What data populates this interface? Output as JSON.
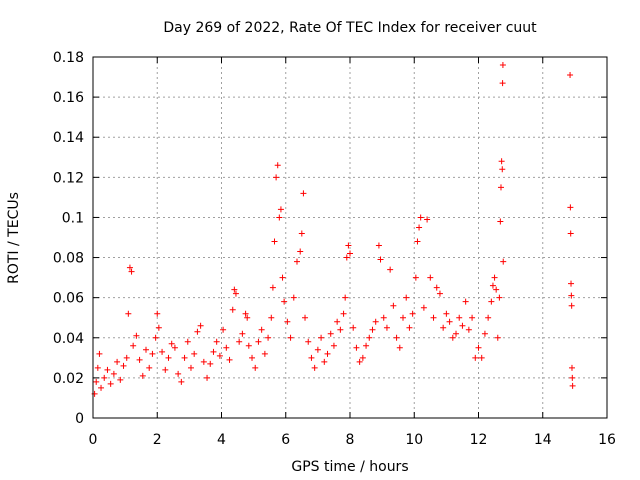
{
  "chart_data": {
    "type": "scatter",
    "title": "Day 269 of 2022, Rate Of TEC Index for receiver cuut",
    "xlabel": "GPS time / hours",
    "ylabel": "ROTI / TECUs",
    "xlim": [
      0,
      16
    ],
    "ylim": [
      0,
      0.18
    ],
    "xticks": [
      "0",
      "2",
      "4",
      "6",
      "8",
      "10",
      "12",
      "14",
      "16"
    ],
    "yticks": [
      "0",
      "0.02",
      "0.04",
      "0.06",
      "0.08",
      "0.1",
      "0.12",
      "0.14",
      "0.16",
      "0.18"
    ],
    "grid": true,
    "marker": "+",
    "series": [
      {
        "color": "#ff0000",
        "points": [
          [
            0.05,
            0.012
          ],
          [
            0.1,
            0.018
          ],
          [
            0.15,
            0.025
          ],
          [
            0.2,
            0.032
          ],
          [
            0.25,
            0.015
          ],
          [
            0.35,
            0.02
          ],
          [
            0.45,
            0.024
          ],
          [
            0.55,
            0.017
          ],
          [
            0.65,
            0.022
          ],
          [
            0.75,
            0.028
          ],
          [
            0.85,
            0.019
          ],
          [
            0.95,
            0.026
          ],
          [
            1.05,
            0.03
          ],
          [
            1.1,
            0.052
          ],
          [
            1.15,
            0.075
          ],
          [
            1.2,
            0.073
          ],
          [
            1.25,
            0.036
          ],
          [
            1.35,
            0.041
          ],
          [
            1.45,
            0.029
          ],
          [
            1.55,
            0.021
          ],
          [
            1.65,
            0.034
          ],
          [
            1.75,
            0.025
          ],
          [
            1.85,
            0.032
          ],
          [
            1.95,
            0.04
          ],
          [
            2.0,
            0.052
          ],
          [
            2.05,
            0.045
          ],
          [
            2.15,
            0.033
          ],
          [
            2.25,
            0.024
          ],
          [
            2.35,
            0.03
          ],
          [
            2.45,
            0.037
          ],
          [
            2.55,
            0.035
          ],
          [
            2.65,
            0.022
          ],
          [
            2.75,
            0.018
          ],
          [
            2.85,
            0.03
          ],
          [
            2.95,
            0.038
          ],
          [
            3.05,
            0.025
          ],
          [
            3.15,
            0.032
          ],
          [
            3.25,
            0.043
          ],
          [
            3.35,
            0.046
          ],
          [
            3.45,
            0.028
          ],
          [
            3.55,
            0.02
          ],
          [
            3.65,
            0.027
          ],
          [
            3.75,
            0.033
          ],
          [
            3.85,
            0.038
          ],
          [
            3.95,
            0.031
          ],
          [
            4.05,
            0.044
          ],
          [
            4.15,
            0.035
          ],
          [
            4.25,
            0.029
          ],
          [
            4.35,
            0.054
          ],
          [
            4.4,
            0.064
          ],
          [
            4.45,
            0.062
          ],
          [
            4.55,
            0.038
          ],
          [
            4.65,
            0.042
          ],
          [
            4.75,
            0.052
          ],
          [
            4.8,
            0.05
          ],
          [
            4.85,
            0.036
          ],
          [
            4.95,
            0.03
          ],
          [
            5.05,
            0.025
          ],
          [
            5.15,
            0.038
          ],
          [
            5.25,
            0.044
          ],
          [
            5.35,
            0.032
          ],
          [
            5.45,
            0.04
          ],
          [
            5.55,
            0.05
          ],
          [
            5.6,
            0.065
          ],
          [
            5.65,
            0.088
          ],
          [
            5.7,
            0.12
          ],
          [
            5.75,
            0.126
          ],
          [
            5.8,
            0.1
          ],
          [
            5.85,
            0.104
          ],
          [
            5.9,
            0.07
          ],
          [
            5.95,
            0.058
          ],
          [
            6.05,
            0.048
          ],
          [
            6.15,
            0.04
          ],
          [
            6.25,
            0.06
          ],
          [
            6.35,
            0.078
          ],
          [
            6.45,
            0.083
          ],
          [
            6.5,
            0.092
          ],
          [
            6.55,
            0.112
          ],
          [
            6.6,
            0.05
          ],
          [
            6.7,
            0.038
          ],
          [
            6.8,
            0.03
          ],
          [
            6.9,
            0.025
          ],
          [
            7.0,
            0.034
          ],
          [
            7.1,
            0.04
          ],
          [
            7.2,
            0.028
          ],
          [
            7.3,
            0.032
          ],
          [
            7.4,
            0.042
          ],
          [
            7.5,
            0.036
          ],
          [
            7.6,
            0.048
          ],
          [
            7.7,
            0.044
          ],
          [
            7.8,
            0.052
          ],
          [
            7.85,
            0.06
          ],
          [
            7.9,
            0.08
          ],
          [
            7.95,
            0.086
          ],
          [
            8.0,
            0.082
          ],
          [
            8.1,
            0.045
          ],
          [
            8.2,
            0.035
          ],
          [
            8.3,
            0.028
          ],
          [
            8.4,
            0.03
          ],
          [
            8.5,
            0.036
          ],
          [
            8.6,
            0.04
          ],
          [
            8.7,
            0.044
          ],
          [
            8.8,
            0.048
          ],
          [
            8.9,
            0.086
          ],
          [
            8.95,
            0.079
          ],
          [
            9.05,
            0.05
          ],
          [
            9.15,
            0.045
          ],
          [
            9.25,
            0.074
          ],
          [
            9.35,
            0.056
          ],
          [
            9.45,
            0.04
          ],
          [
            9.55,
            0.035
          ],
          [
            9.65,
            0.05
          ],
          [
            9.75,
            0.06
          ],
          [
            9.85,
            0.045
          ],
          [
            9.95,
            0.052
          ],
          [
            10.05,
            0.07
          ],
          [
            10.1,
            0.088
          ],
          [
            10.15,
            0.095
          ],
          [
            10.2,
            0.1
          ],
          [
            10.3,
            0.055
          ],
          [
            10.4,
            0.099
          ],
          [
            10.5,
            0.07
          ],
          [
            10.6,
            0.05
          ],
          [
            10.7,
            0.065
          ],
          [
            10.8,
            0.062
          ],
          [
            10.9,
            0.045
          ],
          [
            11.0,
            0.052
          ],
          [
            11.1,
            0.048
          ],
          [
            11.2,
            0.04
          ],
          [
            11.3,
            0.042
          ],
          [
            11.4,
            0.05
          ],
          [
            11.5,
            0.046
          ],
          [
            11.6,
            0.058
          ],
          [
            11.7,
            0.044
          ],
          [
            11.8,
            0.05
          ],
          [
            11.9,
            0.03
          ],
          [
            12.0,
            0.035
          ],
          [
            12.1,
            0.03
          ],
          [
            12.2,
            0.042
          ],
          [
            12.3,
            0.05
          ],
          [
            12.4,
            0.058
          ],
          [
            12.45,
            0.066
          ],
          [
            12.5,
            0.07
          ],
          [
            12.55,
            0.064
          ],
          [
            12.6,
            0.04
          ],
          [
            12.65,
            0.06
          ],
          [
            12.68,
            0.098
          ],
          [
            12.7,
            0.115
          ],
          [
            12.72,
            0.128
          ],
          [
            12.74,
            0.124
          ],
          [
            12.75,
            0.167
          ],
          [
            12.76,
            0.176
          ],
          [
            12.77,
            0.078
          ],
          [
            14.85,
            0.171
          ],
          [
            14.86,
            0.105
          ],
          [
            14.87,
            0.092
          ],
          [
            14.88,
            0.067
          ],
          [
            14.89,
            0.061
          ],
          [
            14.9,
            0.056
          ],
          [
            14.91,
            0.025
          ],
          [
            14.92,
            0.02
          ],
          [
            14.93,
            0.016
          ]
        ]
      }
    ]
  }
}
